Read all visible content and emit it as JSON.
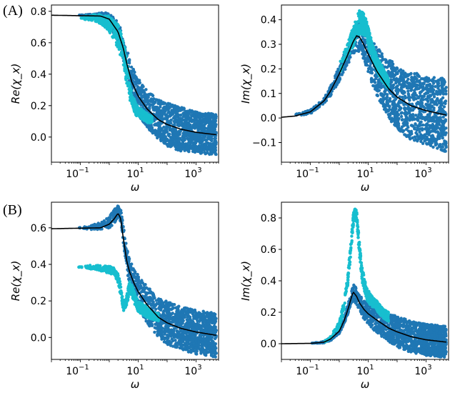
{
  "panel_labels": [
    "(A)",
    "(B)"
  ],
  "chart_data": [
    {
      "type": "scatter",
      "panel": "(A)",
      "title": "",
      "xlabel": "ω",
      "ylabel": "Re(χ_x)",
      "xscale": "log",
      "xlim": [
        0.01,
        6000
      ],
      "ylim": [
        -0.16,
        0.84
      ],
      "xticks": [
        {
          "v": 0.1,
          "base": "10",
          "exp": "−1"
        },
        {
          "v": 10,
          "base": "10",
          "exp": "1"
        },
        {
          "v": 1000,
          "base": "10",
          "exp": "3"
        }
      ],
      "yticks": [
        {
          "v": 0.0,
          "label": "0.0"
        },
        {
          "v": 0.2,
          "label": "0.2"
        },
        {
          "v": 0.4,
          "label": "0.4"
        },
        {
          "v": 0.6,
          "label": "0.6"
        },
        {
          "v": 0.8,
          "label": "0.8"
        }
      ],
      "fit_line": {
        "x": [
          0.01,
          0.5,
          1,
          2,
          3,
          4,
          6,
          10,
          20,
          50,
          100,
          300,
          1000,
          5000
        ],
        "y": [
          0.775,
          0.77,
          0.75,
          0.67,
          0.57,
          0.47,
          0.35,
          0.26,
          0.18,
          0.11,
          0.08,
          0.05,
          0.03,
          0.015
        ],
        "color": "#000000"
      },
      "series": [
        {
          "name": "dark",
          "color": "#1f77b4",
          "x": [
            0.08,
            0.2,
            0.5,
            1,
            2,
            3,
            4,
            6,
            10,
            20,
            50,
            100,
            300,
            1000,
            5000
          ],
          "y": [
            0.775,
            0.775,
            0.77,
            0.75,
            0.67,
            0.57,
            0.47,
            0.35,
            0.26,
            0.18,
            0.11,
            0.08,
            0.05,
            0.03,
            0.015
          ],
          "spread": [
            0.0,
            0.005,
            0.02,
            0.04,
            0.06,
            0.08,
            0.1,
            0.1,
            0.12,
            0.12,
            0.13,
            0.14,
            0.14,
            0.13,
            0.13
          ]
        },
        {
          "name": "light",
          "color": "#17becf",
          "x": [
            0.1,
            0.3,
            0.5,
            1,
            2,
            3,
            4,
            5,
            6,
            8,
            10,
            15,
            20,
            30
          ],
          "y": [
            0.76,
            0.76,
            0.75,
            0.72,
            0.64,
            0.54,
            0.42,
            0.3,
            0.25,
            0.18,
            0.16,
            0.14,
            0.12,
            0.11
          ],
          "spread": [
            0.01,
            0.02,
            0.03,
            0.05,
            0.08,
            0.08,
            0.08,
            0.06,
            0.04,
            0.04,
            0.03,
            0.03,
            0.03,
            0.02
          ]
        }
      ]
    },
    {
      "type": "scatter",
      "panel": "(A)",
      "title": "",
      "xlabel": "ω",
      "ylabel": "Im(χ_x)",
      "xscale": "log",
      "xlim": [
        0.01,
        6000
      ],
      "ylim": [
        -0.18,
        0.46
      ],
      "xticks": [
        {
          "v": 0.1,
          "base": "10",
          "exp": "−1"
        },
        {
          "v": 10,
          "base": "10",
          "exp": "1"
        },
        {
          "v": 1000,
          "base": "10",
          "exp": "3"
        }
      ],
      "yticks": [
        {
          "v": -0.1,
          "label": "−0.1"
        },
        {
          "v": 0.0,
          "label": "0.0"
        },
        {
          "v": 0.1,
          "label": "0.1"
        },
        {
          "v": 0.2,
          "label": "0.2"
        },
        {
          "v": 0.3,
          "label": "0.3"
        },
        {
          "v": 0.4,
          "label": "0.4"
        }
      ],
      "fit_line": {
        "x": [
          0.01,
          0.03,
          0.1,
          0.3,
          0.5,
          1,
          2,
          3,
          4,
          5,
          7,
          10,
          20,
          50,
          100,
          300,
          1000,
          5000
        ],
        "y": [
          0.003,
          0.008,
          0.025,
          0.07,
          0.11,
          0.18,
          0.26,
          0.31,
          0.335,
          0.33,
          0.3,
          0.26,
          0.19,
          0.12,
          0.085,
          0.05,
          0.03,
          0.012
        ],
        "color": "#000000"
      },
      "series": [
        {
          "name": "dark",
          "color": "#1f77b4",
          "x": [
            0.03,
            0.1,
            0.3,
            0.5,
            1,
            2,
            3,
            4,
            5,
            7,
            10,
            20,
            50,
            100,
            300,
            1000,
            5000
          ],
          "y": [
            0.01,
            0.025,
            0.07,
            0.11,
            0.18,
            0.26,
            0.31,
            0.335,
            0.33,
            0.3,
            0.26,
            0.19,
            0.12,
            0.085,
            0.05,
            0.03,
            0.012
          ],
          "spread": [
            0.005,
            0.008,
            0.01,
            0.02,
            0.03,
            0.04,
            0.05,
            0.06,
            0.06,
            0.07,
            0.08,
            0.1,
            0.12,
            0.13,
            0.14,
            0.14,
            0.15
          ]
        },
        {
          "name": "light",
          "color": "#17becf",
          "x": [
            1,
            2,
            3,
            4,
            5,
            6,
            8,
            10,
            15,
            20,
            30,
            50
          ],
          "y": [
            0.2,
            0.28,
            0.33,
            0.37,
            0.39,
            0.39,
            0.37,
            0.33,
            0.26,
            0.22,
            0.18,
            0.14
          ],
          "spread": [
            0.02,
            0.03,
            0.04,
            0.04,
            0.05,
            0.05,
            0.04,
            0.04,
            0.03,
            0.03,
            0.03,
            0.02
          ]
        }
      ]
    },
    {
      "type": "scatter",
      "panel": "(B)",
      "title": "",
      "xlabel": "ω",
      "ylabel": "Re(χ_x)",
      "xscale": "log",
      "xlim": [
        0.01,
        6000
      ],
      "ylim": [
        -0.12,
        0.74
      ],
      "xticks": [
        {
          "v": 0.1,
          "base": "10",
          "exp": "−1"
        },
        {
          "v": 10,
          "base": "10",
          "exp": "1"
        },
        {
          "v": 1000,
          "base": "10",
          "exp": "3"
        }
      ],
      "yticks": [
        {
          "v": 0.0,
          "label": "0.0"
        },
        {
          "v": 0.2,
          "label": "0.2"
        },
        {
          "v": 0.4,
          "label": "0.4"
        },
        {
          "v": 0.6,
          "label": "0.6"
        }
      ],
      "fit_line": {
        "x": [
          0.01,
          0.5,
          1,
          1.5,
          2,
          2.5,
          3,
          4,
          5,
          7,
          10,
          20,
          50,
          100,
          300,
          1000,
          5000
        ],
        "y": [
          0.595,
          0.6,
          0.62,
          0.65,
          0.68,
          0.65,
          0.55,
          0.42,
          0.36,
          0.3,
          0.25,
          0.18,
          0.11,
          0.08,
          0.05,
          0.03,
          0.012
        ],
        "color": "#000000"
      },
      "series": [
        {
          "name": "dark",
          "color": "#1f77b4",
          "x": [
            0.08,
            0.2,
            0.5,
            1,
            1.5,
            2,
            2.5,
            3,
            4,
            5,
            7,
            10,
            20,
            50,
            100,
            300,
            1000,
            5000
          ],
          "y": [
            0.6,
            0.6,
            0.61,
            0.63,
            0.66,
            0.69,
            0.67,
            0.57,
            0.43,
            0.36,
            0.3,
            0.25,
            0.18,
            0.11,
            0.08,
            0.05,
            0.03,
            0.012
          ],
          "spread": [
            0.0,
            0.01,
            0.02,
            0.03,
            0.04,
            0.03,
            0.04,
            0.05,
            0.06,
            0.07,
            0.08,
            0.09,
            0.1,
            0.11,
            0.12,
            0.12,
            0.12,
            0.12
          ]
        },
        {
          "name": "light",
          "color": "#17becf",
          "x": [
            0.08,
            0.2,
            0.5,
            1,
            1.5,
            2,
            2.5,
            3,
            4,
            5,
            6,
            8,
            10,
            15,
            20,
            30,
            50
          ],
          "y": [
            0.385,
            0.385,
            0.38,
            0.37,
            0.36,
            0.33,
            0.25,
            0.17,
            0.2,
            0.28,
            0.26,
            0.2,
            0.17,
            0.15,
            0.14,
            0.12,
            0.11
          ],
          "spread": [
            0.0,
            0.01,
            0.015,
            0.02,
            0.02,
            0.03,
            0.03,
            0.03,
            0.03,
            0.03,
            0.03,
            0.03,
            0.03,
            0.03,
            0.03,
            0.02,
            0.02
          ]
        }
      ]
    },
    {
      "type": "scatter",
      "panel": "(B)",
      "title": "",
      "xlabel": "ω",
      "ylabel": "Im(χ_x)",
      "xscale": "log",
      "xlim": [
        0.01,
        6000
      ],
      "ylim": [
        -0.1,
        0.9
      ],
      "xticks": [
        {
          "v": 0.1,
          "base": "10",
          "exp": "−1"
        },
        {
          "v": 10,
          "base": "10",
          "exp": "1"
        },
        {
          "v": 1000,
          "base": "10",
          "exp": "3"
        }
      ],
      "yticks": [
        {
          "v": 0.0,
          "label": "0.0"
        },
        {
          "v": 0.2,
          "label": "0.2"
        },
        {
          "v": 0.4,
          "label": "0.4"
        },
        {
          "v": 0.6,
          "label": "0.6"
        },
        {
          "v": 0.8,
          "label": "0.8"
        }
      ],
      "fit_line": {
        "x": [
          0.01,
          0.1,
          0.3,
          0.5,
          1,
          1.5,
          2,
          2.5,
          3,
          4,
          5,
          7,
          10,
          20,
          50,
          100,
          300,
          1000,
          5000
        ],
        "y": [
          0.0,
          0.002,
          0.01,
          0.03,
          0.08,
          0.15,
          0.22,
          0.28,
          0.33,
          0.3,
          0.26,
          0.22,
          0.19,
          0.15,
          0.1,
          0.075,
          0.045,
          0.025,
          0.01
        ],
        "color": "#000000"
      },
      "series": [
        {
          "name": "dark",
          "color": "#1f77b4",
          "x": [
            0.1,
            0.3,
            0.5,
            1,
            1.5,
            2,
            2.5,
            3,
            4,
            5,
            7,
            10,
            20,
            50,
            100,
            300,
            1000,
            5000
          ],
          "y": [
            0.002,
            0.01,
            0.03,
            0.08,
            0.15,
            0.22,
            0.28,
            0.33,
            0.3,
            0.26,
            0.22,
            0.19,
            0.15,
            0.1,
            0.075,
            0.045,
            0.025,
            0.01
          ],
          "spread": [
            0.0,
            0.005,
            0.01,
            0.015,
            0.02,
            0.03,
            0.04,
            0.05,
            0.05,
            0.05,
            0.06,
            0.07,
            0.08,
            0.09,
            0.1,
            0.1,
            0.1,
            0.1
          ]
        },
        {
          "name": "light",
          "color": "#17becf",
          "x": [
            0.3,
            0.5,
            1,
            1.5,
            2,
            2.5,
            3,
            3.5,
            4,
            5,
            6,
            8,
            10,
            15,
            20,
            30,
            50
          ],
          "y": [
            0.01,
            0.04,
            0.12,
            0.25,
            0.42,
            0.6,
            0.78,
            0.84,
            0.8,
            0.6,
            0.45,
            0.35,
            0.3,
            0.26,
            0.24,
            0.2,
            0.17
          ],
          "spread": [
            0.005,
            0.01,
            0.02,
            0.03,
            0.04,
            0.04,
            0.04,
            0.03,
            0.04,
            0.05,
            0.05,
            0.04,
            0.04,
            0.03,
            0.03,
            0.03,
            0.03
          ]
        }
      ]
    }
  ]
}
